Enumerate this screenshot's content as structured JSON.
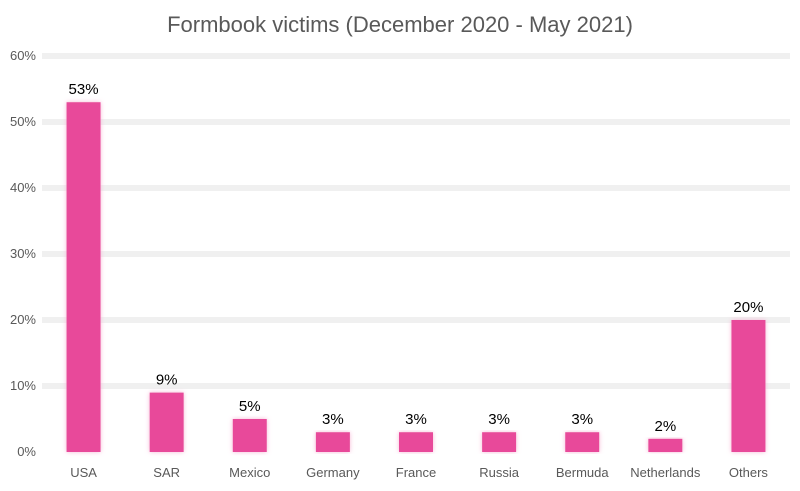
{
  "chart_data": {
    "type": "bar",
    "title": "Formbook victims (December 2020 - May 2021)",
    "xlabel": "",
    "ylabel": "",
    "categories": [
      "USA",
      "SAR",
      "Mexico",
      "Germany",
      "France",
      "Russia",
      "Bermuda",
      "Netherlands",
      "Others"
    ],
    "values": [
      53,
      9,
      5,
      3,
      3,
      3,
      3,
      2,
      20
    ],
    "data_labels": [
      "53%",
      "9%",
      "5%",
      "3%",
      "3%",
      "3%",
      "3%",
      "2%",
      "20%"
    ],
    "ylim": [
      0,
      60
    ],
    "yticks": [
      "0%",
      "10%",
      "20%",
      "30%",
      "40%",
      "50%",
      "60%"
    ],
    "grid": true,
    "legend": "none",
    "bar_color": "#E8489A",
    "bar_glow_color": "#F7B6D6"
  }
}
